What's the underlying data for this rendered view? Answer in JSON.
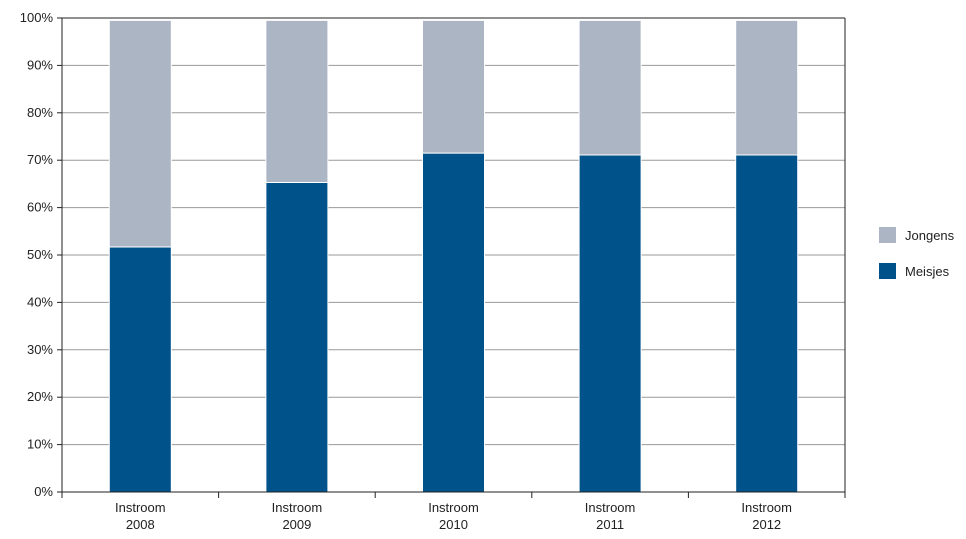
{
  "chart_data": {
    "type": "bar",
    "stacked": true,
    "categories": [
      [
        "Instroom",
        "2008"
      ],
      [
        "Instroom",
        "2009"
      ],
      [
        "Instroom",
        "2010"
      ],
      [
        "Instroom",
        "2011"
      ],
      [
        "Instroom",
        "2012"
      ]
    ],
    "series": [
      {
        "name": "Meisjes",
        "color": "#00528a",
        "values": [
          51.7,
          65.3,
          71.5,
          71.1,
          71.1
        ]
      },
      {
        "name": "Jongens",
        "color": "#abb5c4",
        "values": [
          47.8,
          34.2,
          28.0,
          28.4,
          28.4
        ]
      }
    ],
    "legend_order": [
      "Jongens",
      "Meisjes"
    ],
    "legend_position": "right",
    "ylim": [
      0,
      100
    ],
    "yticks": [
      0,
      10,
      20,
      30,
      40,
      50,
      60,
      70,
      80,
      90,
      100
    ],
    "ytick_labels": [
      "0%",
      "10%",
      "20%",
      "30%",
      "40%",
      "50%",
      "60%",
      "70%",
      "80%",
      "90%",
      "100%"
    ],
    "grid": true,
    "title": "",
    "xlabel": "",
    "ylabel": ""
  }
}
